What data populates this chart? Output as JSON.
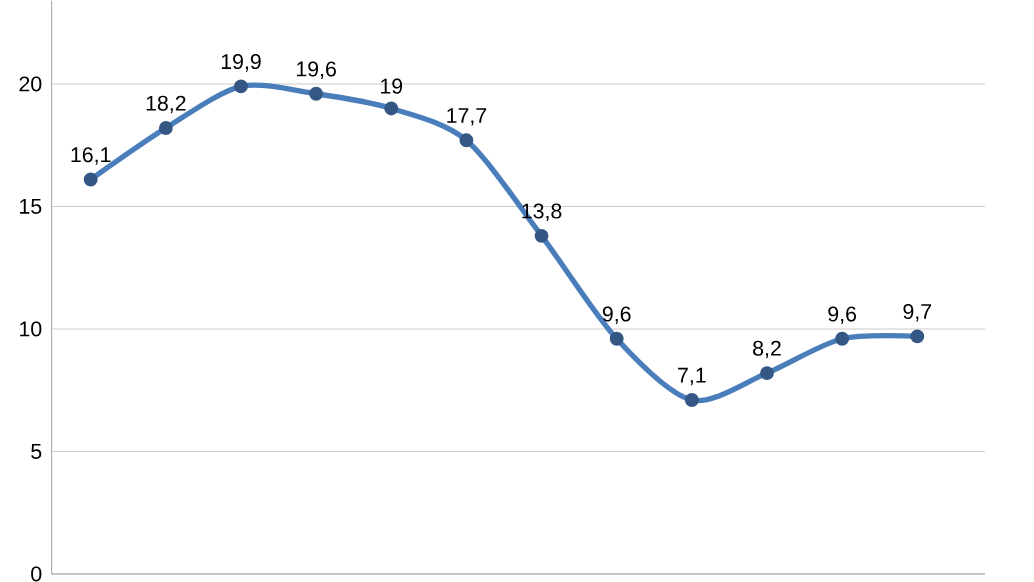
{
  "chart_data": {
    "type": "line",
    "categories": [
      null,
      null,
      null,
      null,
      null,
      null,
      null,
      null,
      null,
      null,
      null,
      null
    ],
    "series": [
      {
        "color": "#4a7ebb",
        "values": [
          16.1,
          18.2,
          19.9,
          19.6,
          19,
          17.7,
          13.8,
          9.6,
          7.1,
          8.2,
          9.6,
          9.7
        ],
        "value_labels": [
          "16,1",
          "18,2",
          "19,9",
          "19,6",
          "19",
          "17,7",
          "13,8",
          "9,6",
          "7,1",
          "8,2",
          "9,6",
          "9,7"
        ]
      }
    ],
    "ylim": [
      0,
      23.4
    ],
    "yticks": [
      0,
      5,
      10,
      15,
      20
    ],
    "grid": "y",
    "marker": "circle",
    "line_style": "solid",
    "tick_labels": "y"
  }
}
